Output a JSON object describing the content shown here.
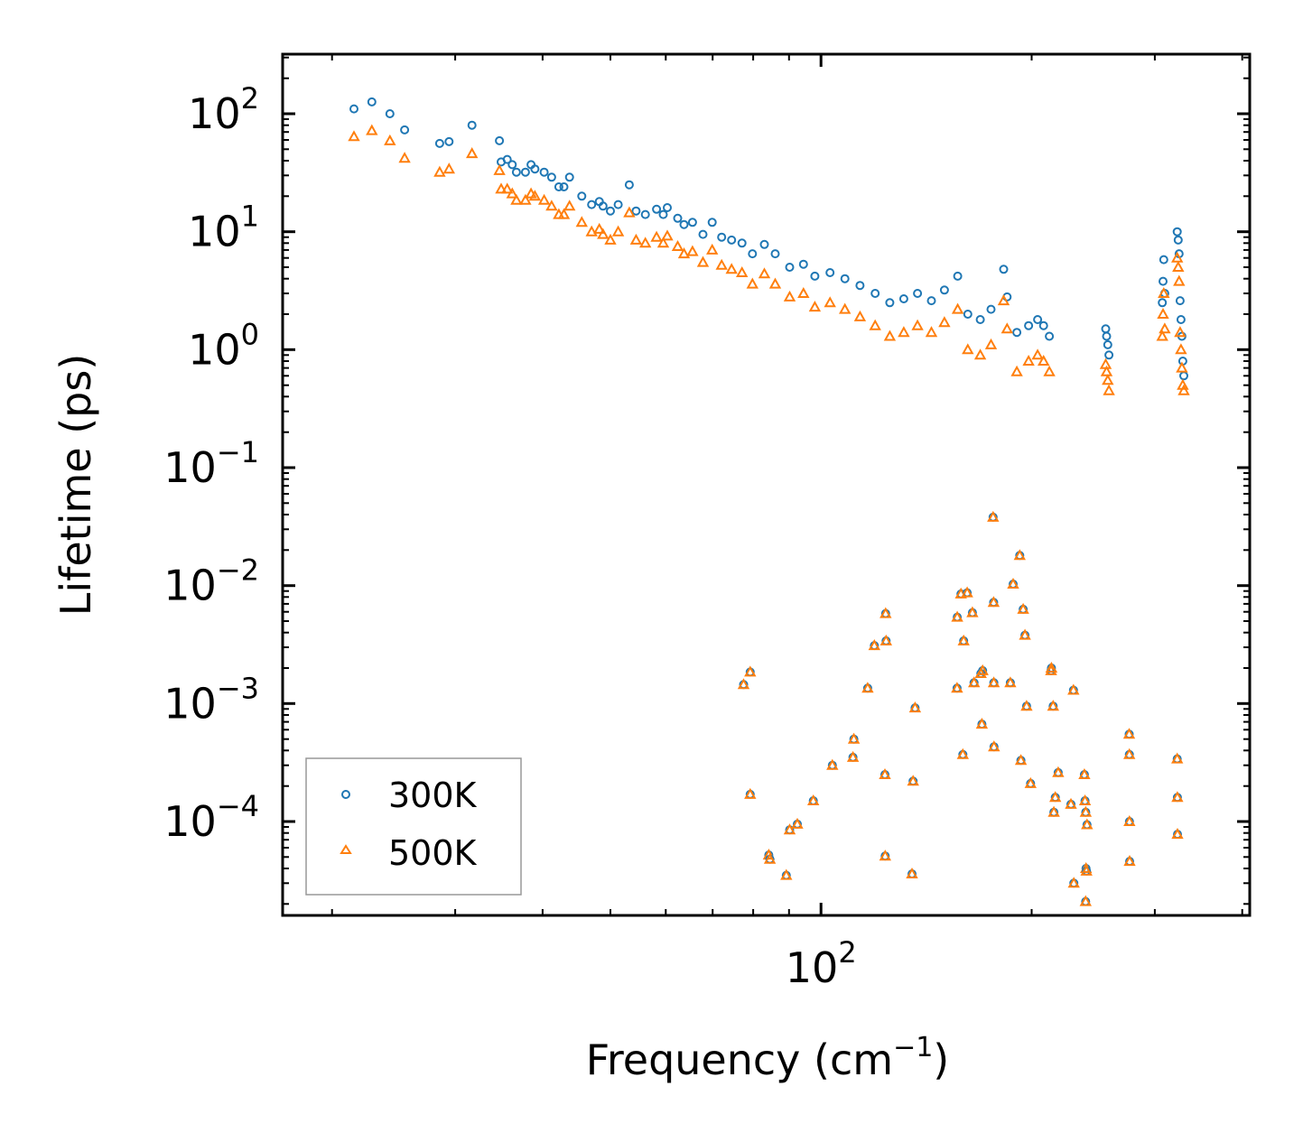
{
  "chart_data": {
    "type": "scatter",
    "xscale": "log",
    "yscale": "log",
    "xlim": [
      17,
      410
    ],
    "ylim": [
      1.6e-05,
      320
    ],
    "xlabel": "Frequency (cm",
    "xlabel_sup": "−1",
    "xlabel_end": ")",
    "ylabel": "Lifetime (ps)",
    "x_ticks": [
      {
        "value": 100,
        "base": "10",
        "exp": "2"
      }
    ],
    "y_ticks": [
      {
        "value": 100,
        "base": "10",
        "exp": "2"
      },
      {
        "value": 10,
        "base": "10",
        "exp": "1"
      },
      {
        "value": 1,
        "base": "10",
        "exp": "0"
      },
      {
        "value": 0.1,
        "base": "10",
        "exp": "−1"
      },
      {
        "value": 0.01,
        "base": "10",
        "exp": "−2"
      },
      {
        "value": 0.001,
        "base": "10",
        "exp": "−3"
      },
      {
        "value": 0.0001,
        "base": "10",
        "exp": "−4"
      }
    ],
    "legend_position": "lower-left",
    "series": [
      {
        "name": "300K",
        "marker": "circle",
        "color": "#1f77b4",
        "points": [
          [
            21.5,
            110
          ],
          [
            22.8,
            126
          ],
          [
            24.2,
            100
          ],
          [
            25.4,
            73
          ],
          [
            28.5,
            56
          ],
          [
            29.4,
            58
          ],
          [
            31.7,
            80
          ],
          [
            34.7,
            59
          ],
          [
            34.9,
            39
          ],
          [
            35.6,
            41
          ],
          [
            36.2,
            37
          ],
          [
            36.7,
            32
          ],
          [
            37.8,
            32
          ],
          [
            38.5,
            37
          ],
          [
            39.0,
            34
          ],
          [
            40.2,
            32
          ],
          [
            41.2,
            29
          ],
          [
            42.2,
            24
          ],
          [
            42.9,
            24
          ],
          [
            43.7,
            29
          ],
          [
            45.5,
            20
          ],
          [
            47.0,
            17
          ],
          [
            48.2,
            18
          ],
          [
            48.8,
            16.5
          ],
          [
            50.0,
            15
          ],
          [
            51.3,
            17
          ],
          [
            53.2,
            25
          ],
          [
            54.4,
            15
          ],
          [
            56.1,
            14
          ],
          [
            58.2,
            15.5
          ],
          [
            59.5,
            14
          ],
          [
            60.3,
            16
          ],
          [
            62.4,
            13
          ],
          [
            63.7,
            11.5
          ],
          [
            65.5,
            12
          ],
          [
            67.8,
            9.5
          ],
          [
            69.9,
            12
          ],
          [
            72.1,
            9
          ],
          [
            74.5,
            8.5
          ],
          [
            77.1,
            8
          ],
          [
            79.8,
            6.5
          ],
          [
            83.0,
            7.8
          ],
          [
            86.0,
            6.5
          ],
          [
            90.2,
            5
          ],
          [
            94.4,
            5.3
          ],
          [
            98.0,
            4.2
          ],
          [
            103.0,
            4.5
          ],
          [
            108.2,
            4.0
          ],
          [
            113.7,
            3.5
          ],
          [
            119.5,
            3.0
          ],
          [
            125.4,
            2.5
          ],
          [
            131.3,
            2.7
          ],
          [
            137.4,
            3.0
          ],
          [
            143.8,
            2.6
          ],
          [
            150.1,
            3.2
          ],
          [
            156.8,
            4.2
          ],
          [
            162.1,
            2.0
          ],
          [
            168.9,
            1.8
          ],
          [
            175.0,
            2.2
          ],
          [
            182.4,
            4.8
          ],
          [
            184.5,
            2.8
          ],
          [
            190.5,
            1.4
          ],
          [
            198.0,
            1.6
          ],
          [
            204.0,
            1.8
          ],
          [
            208.0,
            1.6
          ],
          [
            212.0,
            1.3
          ],
          [
            255.2,
            1.5
          ],
          [
            256.0,
            1.3
          ],
          [
            257.0,
            1.1
          ],
          [
            258.0,
            0.9
          ],
          [
            307.5,
            2.5
          ],
          [
            308.2,
            3.8
          ],
          [
            309.0,
            5.8
          ],
          [
            310.0,
            3.0
          ],
          [
            323.0,
            10.0
          ],
          [
            324.0,
            8.5
          ],
          [
            325.0,
            6.5
          ],
          [
            326.0,
            2.6
          ],
          [
            327.0,
            1.8
          ],
          [
            328.0,
            1.3
          ],
          [
            329.0,
            0.8
          ],
          [
            330.0,
            0.6
          ]
        ]
      },
      {
        "name": "500K",
        "marker": "triangle",
        "color": "#ff7f0e",
        "points": [
          [
            21.5,
            64
          ],
          [
            22.8,
            72
          ],
          [
            24.2,
            59
          ],
          [
            25.4,
            42
          ],
          [
            28.5,
            32
          ],
          [
            29.4,
            34
          ],
          [
            31.7,
            46
          ],
          [
            34.7,
            33
          ],
          [
            34.9,
            23
          ],
          [
            35.6,
            23
          ],
          [
            36.2,
            21
          ],
          [
            36.7,
            18.5
          ],
          [
            37.8,
            18.5
          ],
          [
            38.5,
            21
          ],
          [
            39.0,
            20
          ],
          [
            40.2,
            18.5
          ],
          [
            41.2,
            16.5
          ],
          [
            42.2,
            14
          ],
          [
            42.9,
            14
          ],
          [
            43.7,
            16.5
          ],
          [
            45.5,
            12
          ],
          [
            47.0,
            10
          ],
          [
            48.2,
            10.5
          ],
          [
            48.8,
            9.5
          ],
          [
            50.0,
            8.5
          ],
          [
            51.3,
            10
          ],
          [
            53.2,
            14.5
          ],
          [
            54.4,
            8.5
          ],
          [
            56.1,
            8
          ],
          [
            58.2,
            9
          ],
          [
            59.5,
            8
          ],
          [
            60.3,
            9.2
          ],
          [
            62.4,
            7.5
          ],
          [
            63.7,
            6.5
          ],
          [
            65.5,
            6.8
          ],
          [
            67.8,
            5.5
          ],
          [
            69.9,
            7
          ],
          [
            72.1,
            5.2
          ],
          [
            74.5,
            4.8
          ],
          [
            77.1,
            4.5
          ],
          [
            79.8,
            3.6
          ],
          [
            83.0,
            4.4
          ],
          [
            86.0,
            3.6
          ],
          [
            90.2,
            2.8
          ],
          [
            94.4,
            3.0
          ],
          [
            98.0,
            2.3
          ],
          [
            103.0,
            2.5
          ],
          [
            108.2,
            2.2
          ],
          [
            113.7,
            1.9
          ],
          [
            119.5,
            1.6
          ],
          [
            125.4,
            1.3
          ],
          [
            131.3,
            1.4
          ],
          [
            137.4,
            1.6
          ],
          [
            143.8,
            1.4
          ],
          [
            150.1,
            1.7
          ],
          [
            156.8,
            2.2
          ],
          [
            162.1,
            1.0
          ],
          [
            168.9,
            0.9
          ],
          [
            175.0,
            1.1
          ],
          [
            182.4,
            2.6
          ],
          [
            184.5,
            1.5
          ],
          [
            190.5,
            0.65
          ],
          [
            198.0,
            0.8
          ],
          [
            204.0,
            0.9
          ],
          [
            208.0,
            0.8
          ],
          [
            212.0,
            0.65
          ],
          [
            255.2,
            0.75
          ],
          [
            256.0,
            0.65
          ],
          [
            257.0,
            0.55
          ],
          [
            258.0,
            0.45
          ],
          [
            307.5,
            1.3
          ],
          [
            308.2,
            2.0
          ],
          [
            309.0,
            3.0
          ],
          [
            310.0,
            1.5
          ],
          [
            323.0,
            6.0
          ],
          [
            324.0,
            5.0
          ],
          [
            325.0,
            3.8
          ],
          [
            326.0,
            1.4
          ],
          [
            327.0,
            1.0
          ],
          [
            328.0,
            0.7
          ],
          [
            329.0,
            0.5
          ],
          [
            330.0,
            0.45
          ]
        ]
      }
    ],
    "shared_low_points": [
      [
        77.5,
        0.00145
      ],
      [
        79.2,
        0.00185
      ],
      [
        79.2,
        0.00017
      ],
      [
        84.2,
        5.2e-05
      ],
      [
        84.5,
        4.8e-05
      ],
      [
        89.2,
        3.5e-05
      ],
      [
        90.2,
        8.5e-05
      ],
      [
        92.5,
        9.5e-05
      ],
      [
        97.5,
        0.00015
      ],
      [
        103.8,
        0.0003
      ],
      [
        111.1,
        0.00035
      ],
      [
        111.4,
        0.0005
      ],
      [
        116.6,
        0.00135
      ],
      [
        119.2,
        0.0031
      ],
      [
        123.7,
        0.0058
      ],
      [
        123.9,
        0.0034
      ],
      [
        123.4,
        0.00025
      ],
      [
        123.5,
        5.1e-05
      ],
      [
        134.9,
        3.6e-05
      ],
      [
        135.4,
        0.00022
      ],
      [
        136.3,
        0.00092
      ],
      [
        156.6,
        0.0054
      ],
      [
        158.5,
        0.0085
      ],
      [
        159.5,
        0.00037
      ],
      [
        159.9,
        0.0034
      ],
      [
        161.8,
        0.0087
      ],
      [
        164.6,
        0.0059
      ],
      [
        156.5,
        0.00135
      ],
      [
        165.5,
        0.0015
      ],
      [
        169.2,
        0.0018
      ],
      [
        169.8,
        0.00067
      ],
      [
        170.2,
        0.0019
      ],
      [
        176.2,
        0.038
      ],
      [
        176.5,
        0.0072
      ],
      [
        176.6,
        0.0015
      ],
      [
        176.7,
        0.00043
      ],
      [
        186.5,
        0.0015
      ],
      [
        188.2,
        0.0103
      ],
      [
        192.3,
        0.018
      ],
      [
        193.1,
        0.00033
      ],
      [
        194.5,
        0.0063
      ],
      [
        195.7,
        0.0038
      ],
      [
        196.7,
        0.00095
      ],
      [
        199.3,
        0.00021
      ],
      [
        213.2,
        0.0019
      ],
      [
        213.5,
        0.002
      ],
      [
        214.7,
        0.00095
      ],
      [
        215.2,
        0.00012
      ],
      [
        216.2,
        0.00016
      ],
      [
        218.3,
        0.00026
      ],
      [
        227.6,
        0.00014
      ],
      [
        229.5,
        0.0013
      ],
      [
        229.8,
        3e-05
      ],
      [
        237.9,
        0.00025
      ],
      [
        238.4,
        0.00015
      ],
      [
        239.0,
        0.00012
      ],
      [
        240.0,
        9.4e-05
      ],
      [
        239.2,
        4e-05
      ],
      [
        239.6,
        3.8e-05
      ],
      [
        238.9,
        2.1e-05
      ],
      [
        275.7,
        0.00055
      ],
      [
        275.9,
        0.00037
      ],
      [
        276.0,
        0.0001
      ],
      [
        276.1,
        4.6e-05
      ],
      [
        323.0,
        0.00034
      ],
      [
        323.1,
        0.00016
      ],
      [
        323.2,
        7.8e-05
      ]
    ]
  }
}
